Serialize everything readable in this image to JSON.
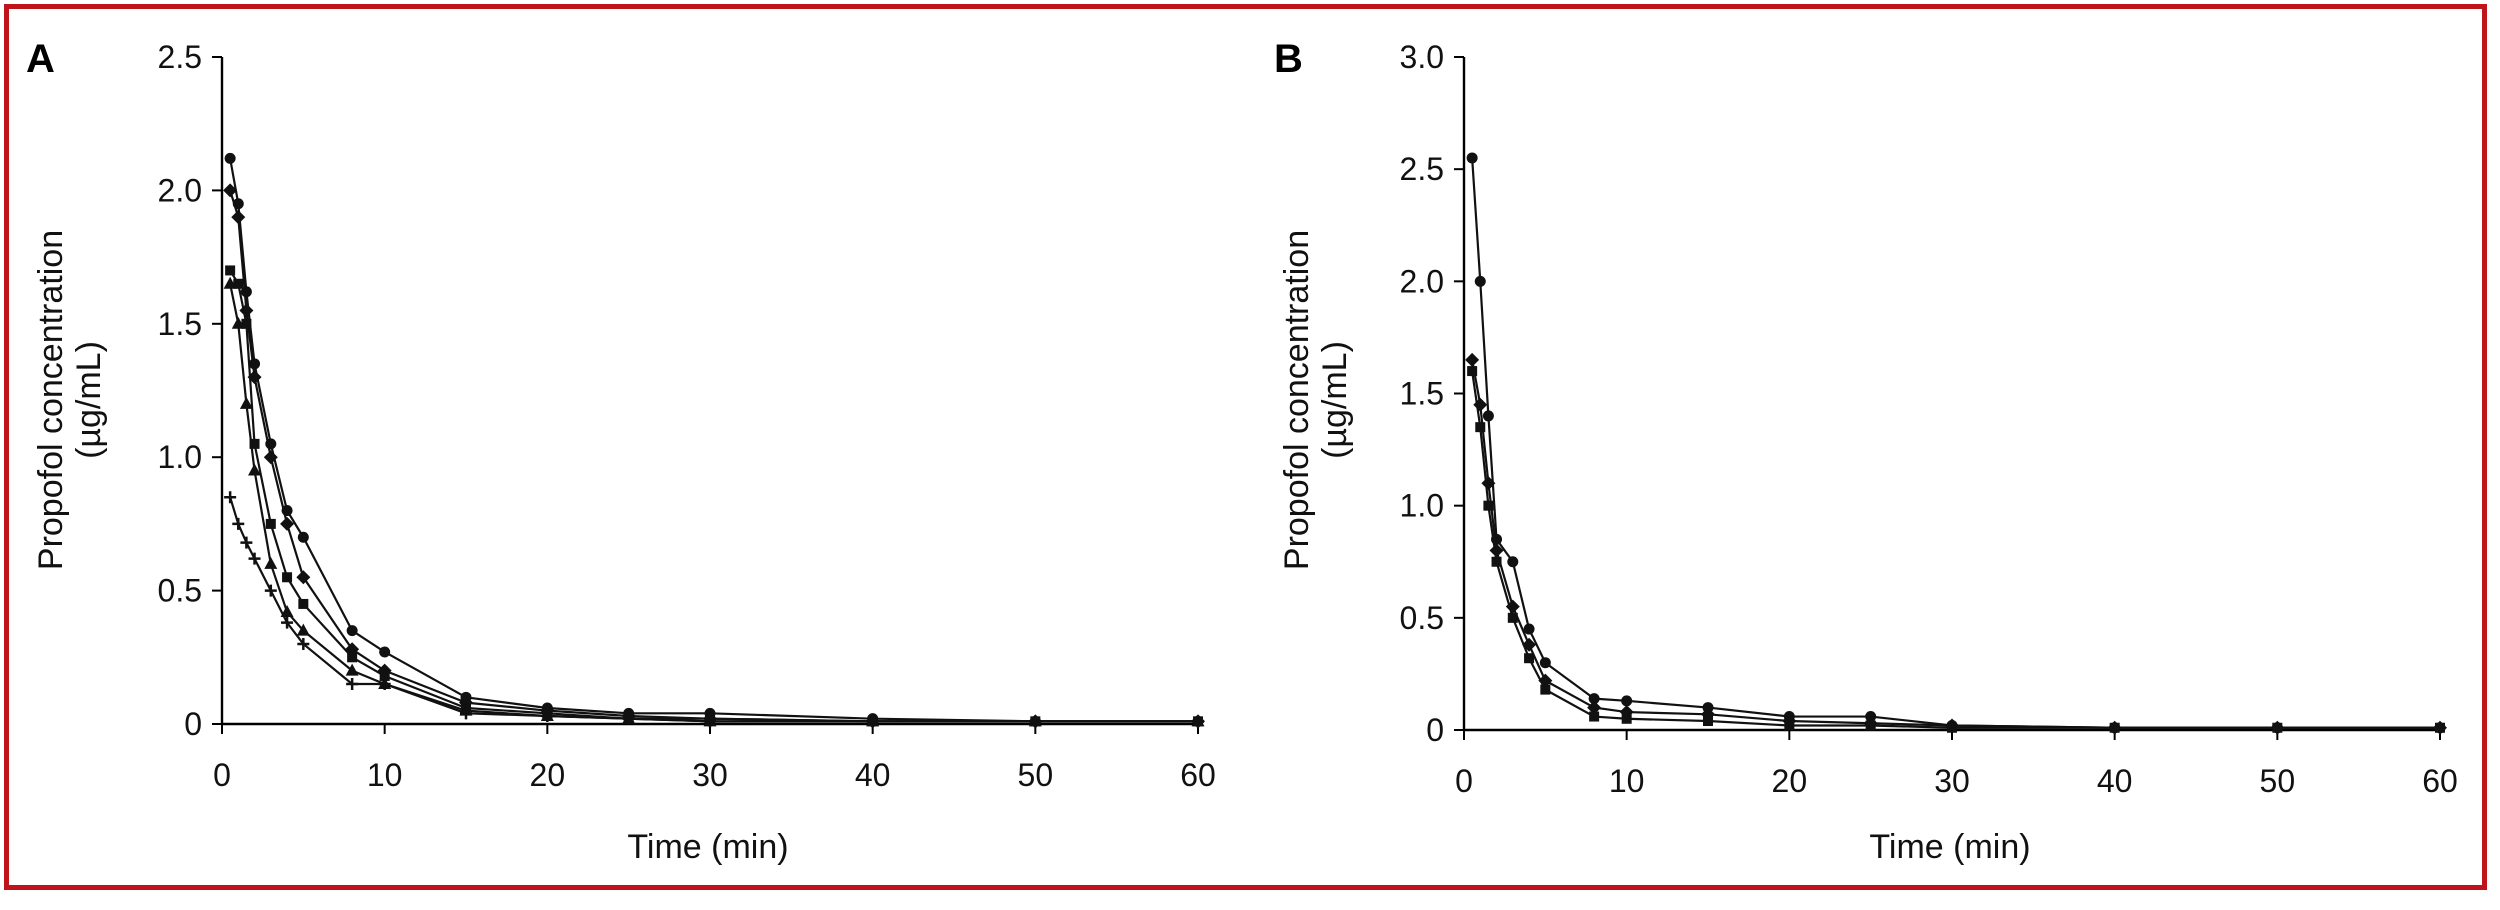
{
  "frame_color": "#c0141c",
  "chart_data": [
    {
      "type": "line",
      "panel_label": "A",
      "xlabel": "Time (min)",
      "ylabel": [
        "Propofol concentration",
        "(µg/mL)"
      ],
      "xlim": [
        0,
        60
      ],
      "ylim": [
        0,
        2.5
      ],
      "xticks": [
        0,
        10,
        20,
        30,
        40,
        50,
        60
      ],
      "yticks": [
        "0",
        "0.5",
        "1.0",
        "1.5",
        "2.0",
        "2.5"
      ],
      "ytick_values": [
        0,
        0.5,
        1.0,
        1.5,
        2.0,
        2.5
      ],
      "grid": false,
      "series": [
        {
          "x": [
            0.5,
            1,
            1.5,
            2,
            3,
            4,
            5,
            8,
            10,
            15,
            20,
            25,
            30,
            40,
            50,
            60
          ],
          "values": [
            2.12,
            1.95,
            1.62,
            1.35,
            1.05,
            0.8,
            0.7,
            0.35,
            0.27,
            0.1,
            0.06,
            0.04,
            0.04,
            0.02,
            0.01,
            0.01
          ]
        },
        {
          "x": [
            0.5,
            1,
            1.5,
            2,
            3,
            4,
            5,
            8,
            10,
            15,
            20,
            25,
            30,
            40,
            50,
            60
          ],
          "values": [
            2.0,
            1.9,
            1.55,
            1.3,
            1.0,
            0.75,
            0.55,
            0.28,
            0.2,
            0.08,
            0.05,
            0.03,
            0.02,
            0.01,
            0.01,
            0.01
          ]
        },
        {
          "x": [
            0.5,
            1,
            1.5,
            2,
            3,
            4,
            5,
            8,
            10,
            15,
            20,
            25,
            30,
            40,
            50,
            60
          ],
          "values": [
            1.7,
            1.65,
            1.5,
            1.05,
            0.75,
            0.55,
            0.45,
            0.25,
            0.18,
            0.06,
            0.04,
            0.02,
            0.02,
            0.01,
            0.01,
            0.01
          ]
        },
        {
          "x": [
            0.5,
            1,
            1.5,
            2,
            3,
            4,
            5,
            8,
            10,
            15,
            20,
            25,
            30,
            40,
            50,
            60
          ],
          "values": [
            1.65,
            1.5,
            1.2,
            0.95,
            0.6,
            0.42,
            0.35,
            0.2,
            0.15,
            0.05,
            0.03,
            0.02,
            0.01,
            0.01,
            0.01,
            0.01
          ]
        },
        {
          "x": [
            0.5,
            1,
            1.5,
            2,
            3,
            4,
            5,
            8,
            10,
            15,
            20,
            25,
            30,
            40,
            50,
            60
          ],
          "values": [
            0.85,
            0.75,
            0.68,
            0.62,
            0.5,
            0.38,
            0.3,
            0.15,
            0.15,
            0.04,
            0.03,
            0.02,
            0.01,
            0.01,
            0.01,
            0.01
          ]
        }
      ]
    },
    {
      "type": "line",
      "panel_label": "B",
      "xlabel": "Time (min)",
      "ylabel": [
        "Propofol concentration",
        "(µg/mL)"
      ],
      "xlim": [
        0,
        60
      ],
      "ylim": [
        0,
        3.0
      ],
      "xticks": [
        0,
        10,
        20,
        30,
        40,
        50,
        60
      ],
      "yticks": [
        "0",
        "0.5",
        "1.0",
        "1.5",
        "2.0",
        "2.5",
        "3.0"
      ],
      "ytick_values": [
        0,
        0.5,
        1.0,
        1.5,
        2.0,
        2.5,
        3.0
      ],
      "grid": false,
      "series": [
        {
          "x": [
            0.5,
            1,
            1.5,
            2,
            3,
            4,
            5,
            8,
            10,
            15,
            20,
            25,
            30,
            40,
            50,
            60
          ],
          "values": [
            2.55,
            2.0,
            1.4,
            0.85,
            0.75,
            0.45,
            0.3,
            0.14,
            0.13,
            0.1,
            0.06,
            0.06,
            0.02,
            0.01,
            0.01,
            0.01
          ]
        },
        {
          "x": [
            0.5,
            1,
            1.5,
            2,
            3,
            4,
            5,
            8,
            10,
            15,
            20,
            25,
            30,
            40,
            50,
            60
          ],
          "values": [
            1.65,
            1.45,
            1.1,
            0.8,
            0.55,
            0.38,
            0.22,
            0.1,
            0.08,
            0.07,
            0.04,
            0.03,
            0.02,
            0.01,
            0.01,
            0.01
          ]
        },
        {
          "x": [
            0.5,
            1,
            1.5,
            2,
            3,
            4,
            5,
            8,
            10,
            15,
            20,
            25,
            30,
            40,
            50,
            60
          ],
          "values": [
            1.6,
            1.35,
            1.0,
            0.75,
            0.5,
            0.32,
            0.18,
            0.06,
            0.05,
            0.04,
            0.02,
            0.02,
            0.01,
            0.01,
            0.01,
            0.01
          ]
        }
      ]
    }
  ]
}
